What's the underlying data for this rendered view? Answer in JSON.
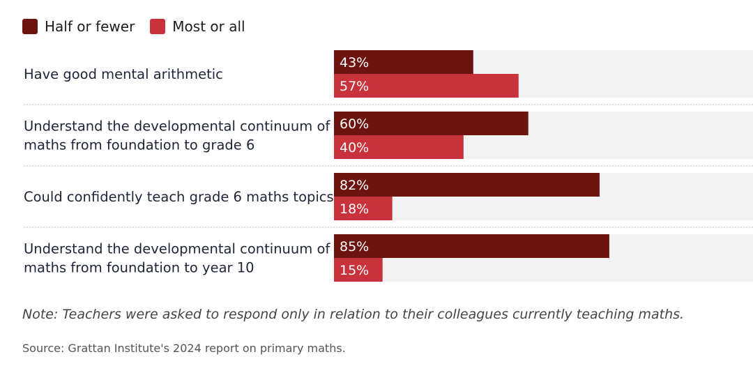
{
  "legend": {
    "items": [
      {
        "label": "Half or fewer",
        "color": "#6e1410"
      },
      {
        "label": "Most or all",
        "color": "#c8323a"
      }
    ]
  },
  "chart_data": {
    "type": "bar",
    "orientation": "horizontal",
    "categories": [
      [
        "Have good mental arithmetic"
      ],
      [
        "Understand the developmental continuum of",
        "maths from foundation to grade 6"
      ],
      [
        "Could confidently teach grade 6 maths topics"
      ],
      [
        "Understand the developmental continuum of",
        "maths from foundation to year 10"
      ]
    ],
    "series": [
      {
        "name": "Half or fewer",
        "color": "#6e1410",
        "values": [
          43,
          60,
          82,
          85
        ],
        "labels": [
          "43%",
          "60%",
          "82%",
          "85%"
        ]
      },
      {
        "name": "Most or all",
        "color": "#c8323a",
        "values": [
          57,
          40,
          18,
          15
        ],
        "labels": [
          "57%",
          "40%",
          "18%",
          "15%"
        ]
      }
    ],
    "xlim": [
      0,
      100
    ],
    "track_color": "#f2f2f2",
    "legend_position": "top-left"
  },
  "footer": {
    "note": "Note: Teachers were asked to respond only in relation to their colleagues currently teaching maths.",
    "source": "Source: Grattan Institute's 2024 report on primary maths."
  }
}
